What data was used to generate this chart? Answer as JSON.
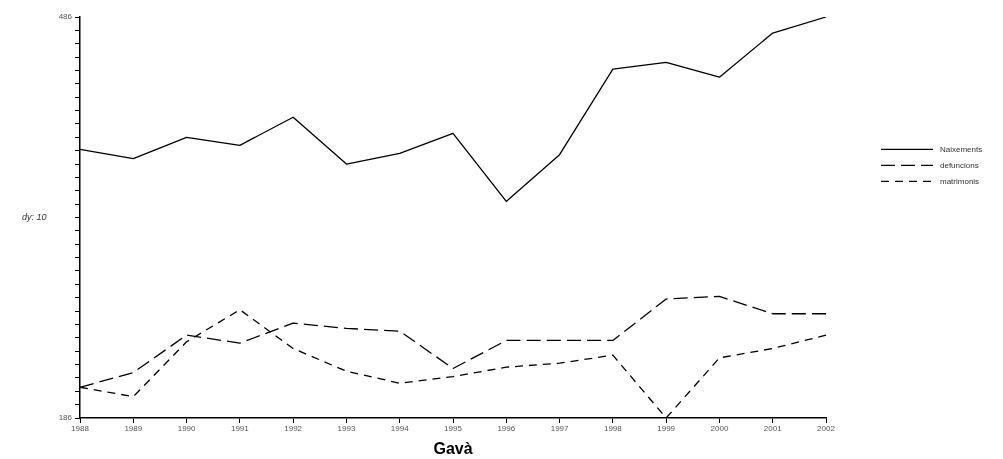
{
  "chart_data": {
    "type": "line",
    "xlabel": "Gavà",
    "ylabel": "dy: 10",
    "categories": [
      "1988",
      "1989",
      "1990",
      "1991",
      "1992",
      "1993",
      "1994",
      "1995",
      "1996",
      "1997",
      "1998",
      "1999",
      "2000",
      "2001",
      "2002"
    ],
    "ylim": [
      186,
      486
    ],
    "yticks": [
      186,
      {
        "value": 196,
        "label": null
      },
      {
        "value": 206,
        "label": null
      },
      {
        "value": 216,
        "label": null
      },
      {
        "value": 226,
        "label": null
      },
      {
        "value": 236,
        "label": null
      },
      {
        "value": 246,
        "label": null
      },
      {
        "value": 256,
        "label": null
      },
      {
        "value": 266,
        "label": null
      },
      {
        "value": 276,
        "label": null
      },
      {
        "value": 286,
        "label": null
      },
      {
        "value": 296,
        "label": null
      },
      {
        "value": 306,
        "label": null
      },
      {
        "value": 316,
        "label": null
      },
      {
        "value": 326,
        "label": null
      },
      {
        "value": 336,
        "label": null
      },
      {
        "value": 346,
        "label": null
      },
      {
        "value": 356,
        "label": null
      },
      {
        "value": 366,
        "label": null
      },
      {
        "value": 376,
        "label": null
      },
      {
        "value": 386,
        "label": null
      },
      {
        "value": 396,
        "label": null
      },
      {
        "value": 406,
        "label": null
      },
      {
        "value": 416,
        "label": null
      },
      {
        "value": 426,
        "label": null
      },
      {
        "value": 436,
        "label": null
      },
      {
        "value": 446,
        "label": null
      },
      {
        "value": 456,
        "label": null
      },
      {
        "value": 466,
        "label": null
      },
      {
        "value": 476,
        "label": null
      },
      486
    ],
    "grid": false,
    "legend": "right",
    "marker": "none",
    "series": [
      {
        "name": "Naixements",
        "color": "#000000",
        "line_style": "solid",
        "values": [
          387,
          380,
          396,
          390,
          411,
          376,
          384,
          399,
          348,
          383,
          447,
          452,
          441,
          474,
          486
        ]
      },
      {
        "name": "defuncions",
        "color": "#000000",
        "line_style": "dashed",
        "values": [
          209,
          220,
          248,
          242,
          257,
          253,
          251,
          223,
          244,
          244,
          244,
          275,
          277,
          264,
          264
        ]
      },
      {
        "name": "matrimonis",
        "color": "#000000",
        "line_style": "dashed",
        "values": [
          209,
          202,
          243,
          267,
          238,
          221,
          212,
          217,
          224,
          227,
          233,
          186,
          231,
          238,
          248
        ]
      }
    ]
  }
}
